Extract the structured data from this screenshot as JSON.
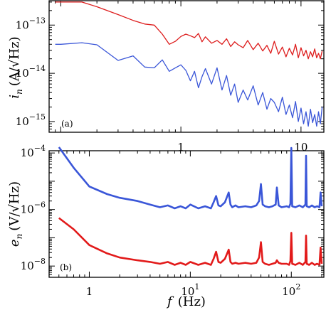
{
  "chart_data": [
    {
      "type": "line",
      "panel_label": "(a)",
      "ylabel_symbol": "i",
      "ylabel_sub": "n",
      "ylabel_unit": "(A/√Hz)",
      "xscale": "log",
      "yscale": "log",
      "xlim": [
        0.08,
        15.5
      ],
      "ylim": [
        6e-16,
        3.2e-13
      ],
      "x_ticks": [
        {
          "value": 1,
          "label": "1"
        },
        {
          "value": 10,
          "label": "10"
        }
      ],
      "y_ticks": [
        {
          "value": 1e-13,
          "base": "10",
          "exp": "−13"
        },
        {
          "value": 1e-14,
          "base": "10",
          "exp": "−14"
        },
        {
          "value": 1e-15,
          "base": "10",
          "exp": "−15"
        }
      ],
      "series": [
        {
          "color": "#dd1c1c",
          "x": [
            0.09,
            0.1,
            0.15,
            0.2,
            0.3,
            0.4,
            0.5,
            0.6,
            0.7,
            0.8,
            0.9,
            1.0,
            1.1,
            1.2,
            1.3,
            1.4,
            1.5,
            1.6,
            1.8,
            2.0,
            2.2,
            2.4,
            2.6,
            2.8,
            3.0,
            3.3,
            3.6,
            4.0,
            4.4,
            4.8,
            5.2,
            5.6,
            6.0,
            6.5,
            7.0,
            7.5,
            8.0,
            8.5,
            9.0,
            9.5,
            10,
            10.5,
            11,
            11.5,
            12,
            12.5,
            13,
            13.5,
            14,
            14.5,
            15
          ],
          "values": [
            3e-13,
            3e-13,
            3e-13,
            2.4e-13,
            1.65e-13,
            1.25e-13,
            1.05e-13,
            1e-13,
            6.5e-14,
            4e-14,
            4.6e-14,
            5.8e-14,
            6.5e-14,
            6e-14,
            5.5e-14,
            6.7e-14,
            4.5e-14,
            5.7e-14,
            4.2e-14,
            4.8e-14,
            4e-14,
            5.2e-14,
            3.6e-14,
            4.5e-14,
            3.9e-14,
            3.4e-14,
            4.8e-14,
            3.1e-14,
            4.2e-14,
            2.9e-14,
            3.8e-14,
            2.6e-14,
            4.6e-14,
            2.5e-14,
            3.5e-14,
            2.2e-14,
            3.3e-14,
            2.4e-14,
            4e-14,
            2.1e-14,
            3.4e-14,
            2.3e-14,
            3e-14,
            2e-14,
            2.8e-14,
            2.2e-14,
            3.2e-14,
            2.1e-14,
            2.6e-14,
            2e-14,
            2.9e-14
          ]
        },
        {
          "color": "#3a56d8",
          "x": [
            0.09,
            0.1,
            0.15,
            0.2,
            0.3,
            0.4,
            0.5,
            0.6,
            0.7,
            0.8,
            0.9,
            1.0,
            1.1,
            1.2,
            1.3,
            1.4,
            1.5,
            1.6,
            1.8,
            2.0,
            2.2,
            2.4,
            2.6,
            2.8,
            3.0,
            3.3,
            3.6,
            4.0,
            4.4,
            4.8,
            5.2,
            5.6,
            6.0,
            6.5,
            7.0,
            7.5,
            8.0,
            8.5,
            9.0,
            9.5,
            10,
            10.5,
            11,
            11.5,
            12,
            12.5,
            13,
            13.5,
            14,
            14.5,
            15
          ],
          "values": [
            4e-14,
            4e-14,
            4.3e-14,
            3.9e-14,
            1.85e-14,
            2.3e-14,
            1.35e-14,
            1.3e-14,
            1.9e-14,
            1.1e-14,
            1.3e-14,
            1.5e-14,
            1.15e-14,
            7e-15,
            1.1e-14,
            5e-15,
            8.5e-15,
            1.25e-14,
            6e-15,
            1.3e-14,
            4.5e-15,
            9e-15,
            3.5e-15,
            6e-15,
            2.5e-15,
            4.5e-15,
            2.8e-15,
            5.5e-15,
            2.2e-15,
            4e-15,
            1.8e-15,
            3e-15,
            2.5e-15,
            1.6e-15,
            3.2e-15,
            1.4e-15,
            2.2e-15,
            1.2e-15,
            2.6e-15,
            1e-15,
            1.9e-15,
            9e-16,
            1.6e-15,
            8e-16,
            1.8e-15,
            9.5e-16,
            1.4e-15,
            8e-16,
            1.6e-15,
            9e-16,
            2e-15
          ]
        }
      ]
    },
    {
      "type": "line",
      "panel_label": "(b)",
      "ylabel_symbol": "e",
      "ylabel_sub": "n",
      "ylabel_unit": "(V/√Hz)",
      "xlabel_symbol": "f",
      "xlabel_unit": "(Hz)",
      "xscale": "log",
      "yscale": "log",
      "xlim": [
        0.4,
        210
      ],
      "ylim": [
        4e-09,
        0.00012
      ],
      "x_ticks": [
        {
          "value": 1,
          "label": "1"
        },
        {
          "value": 10,
          "base": "10",
          "exp": "1"
        },
        {
          "value": 100,
          "base": "10",
          "exp": "2"
        }
      ],
      "y_ticks": [
        {
          "value": 0.0001,
          "base": "10",
          "exp": "−4"
        },
        {
          "value": 1e-06,
          "base": "10",
          "exp": "−6"
        },
        {
          "value": 1e-08,
          "base": "10",
          "exp": "−8"
        }
      ],
      "series": [
        {
          "color": "#3a56d8",
          "x": [
            0.5,
            0.7,
            1,
            1.5,
            2,
            3,
            4,
            5,
            6,
            7,
            8,
            9,
            10,
            12,
            14,
            16,
            17,
            18,
            19,
            20,
            22,
            24,
            25,
            26,
            28,
            30,
            35,
            40,
            45,
            48,
            50,
            52,
            55,
            60,
            65,
            70,
            72,
            75,
            80,
            90,
            95,
            98,
            100,
            102,
            110,
            120,
            130,
            138,
            140,
            142,
            150,
            160,
            170,
            180,
            190,
            195,
            200
          ],
          "values": [
            0.00016,
            3e-05,
            6.5e-06,
            3.5e-06,
            2.6e-06,
            2e-06,
            1.5e-06,
            1.2e-06,
            1.4e-06,
            1.1e-06,
            1.3e-06,
            1.1e-06,
            1.5e-06,
            1.1e-06,
            1.3e-06,
            1.1e-06,
            1.8e-06,
            3e-06,
            1.4e-06,
            1.3e-06,
            1.8e-06,
            4e-06,
            1.5e-06,
            1.2e-06,
            1.4e-06,
            1.2e-06,
            1.3e-06,
            1.2e-06,
            1.4e-06,
            2e-06,
            8e-06,
            1.5e-06,
            1.3e-06,
            1.2e-06,
            1.3e-06,
            1.5e-06,
            6e-06,
            1.4e-06,
            1.2e-06,
            1.3e-06,
            1.2e-06,
            1.6e-06,
            0.00015,
            1.3e-06,
            1.2e-06,
            1.4e-06,
            1.2e-06,
            1.5e-06,
            8e-05,
            1.3e-06,
            1.2e-06,
            1.4e-06,
            1.2e-06,
            1.3e-06,
            1.2e-06,
            4e-06,
            1.3e-06
          ]
        },
        {
          "color": "#e21a1a",
          "x": [
            0.5,
            0.7,
            1,
            1.5,
            2,
            3,
            4,
            5,
            6,
            7,
            8,
            9,
            10,
            12,
            14,
            16,
            17,
            18,
            19,
            20,
            22,
            24,
            25,
            26,
            28,
            30,
            35,
            40,
            45,
            48,
            50,
            52,
            55,
            60,
            65,
            70,
            72,
            75,
            80,
            90,
            95,
            98,
            100,
            102,
            110,
            120,
            130,
            138,
            140,
            142,
            150,
            160,
            170,
            180,
            190,
            195,
            200
          ],
          "values": [
            5e-07,
            2e-07,
            5.5e-08,
            2.8e-08,
            2e-08,
            1.6e-08,
            1.4e-08,
            1.2e-08,
            1.4e-08,
            1.1e-08,
            1.3e-08,
            1.1e-08,
            1.4e-08,
            1.1e-08,
            1.3e-08,
            1.1e-08,
            1.8e-08,
            3.2e-08,
            1.4e-08,
            1.3e-08,
            1.8e-08,
            3.8e-08,
            1.4e-08,
            1.2e-08,
            1.3e-08,
            1.2e-08,
            1.3e-08,
            1.2e-08,
            1.3e-08,
            2e-08,
            7e-08,
            1.4e-08,
            1.2e-08,
            1.1e-08,
            1.2e-08,
            1.3e-08,
            1.6e-08,
            1.3e-08,
            1.2e-08,
            1.2e-08,
            1.1e-08,
            1.5e-08,
            1.5e-07,
            1.2e-08,
            1.1e-08,
            1.3e-08,
            1.1e-08,
            1.4e-08,
            1.2e-07,
            1.2e-08,
            1.1e-08,
            1.3e-08,
            1.1e-08,
            1.2e-08,
            1.1e-08,
            4.5e-08,
            1.2e-08
          ]
        }
      ]
    }
  ]
}
